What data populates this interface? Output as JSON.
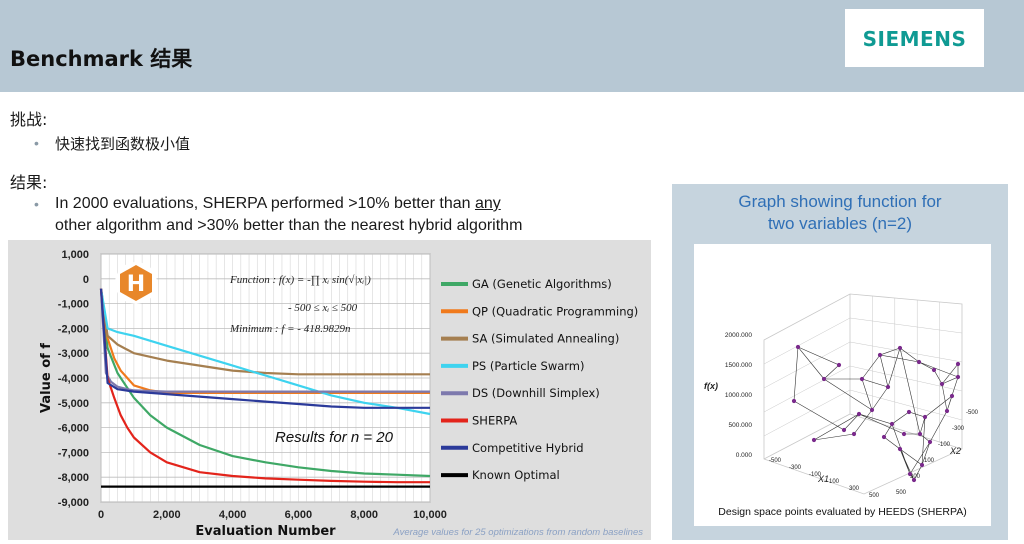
{
  "header": {
    "title": "Benchmark  结果",
    "logo": "SIEMENS"
  },
  "challenge": {
    "heading": "挑战:",
    "bullet": "快速找到函数极小值"
  },
  "result": {
    "heading": "结果:",
    "bullet_a": "In 2000 evaluations, SHERPA performed >10% better than ",
    "bullet_any": "any",
    "bullet_b": "other algorithm and >30% better than the nearest hybrid algorithm"
  },
  "chart_data": {
    "type": "line",
    "xlabel": "Evaluation Number",
    "ylabel": "Value of f",
    "xlim": [
      0,
      10000
    ],
    "ylim": [
      -9000,
      1000
    ],
    "xticks": [
      0,
      2000,
      4000,
      6000,
      8000,
      10000
    ],
    "xtick_labels": [
      "0",
      "2,000",
      "4,000",
      "6,000",
      "8,000",
      "10,000"
    ],
    "yticks": [
      1000,
      0,
      -1000,
      -2000,
      -3000,
      -4000,
      -5000,
      -6000,
      -7000,
      -8000,
      -9000
    ],
    "ytick_labels": [
      "1,000",
      "0",
      "-1,000",
      "-2,000",
      "-3,000",
      "-4,000",
      "-5,000",
      "-6,000",
      "-7,000",
      "-8,000",
      "-9,000"
    ],
    "grid": true,
    "legend_position": "right",
    "annotation_results": "Results for n = 20",
    "annotation_function": "Function : f(x) = -∏ xᵢ sin(√|xᵢ|)",
    "annotation_bounds": "- 500 ≤ xᵢ ≤ 500",
    "annotation_minimum": "Minimum : f = - 418.9829n",
    "footnote": "Average values for 25 optimizations from random baselines",
    "series": [
      {
        "name": "GA (Genetic Algorithms)",
        "color": "#3fa866",
        "x": [
          0,
          200,
          500,
          800,
          1000,
          1500,
          2000,
          3000,
          4000,
          5000,
          6000,
          7000,
          8000,
          9000,
          10000
        ],
        "y": [
          -400,
          -2800,
          -3800,
          -4400,
          -4800,
          -5500,
          -6000,
          -6700,
          -7150,
          -7400,
          -7600,
          -7750,
          -7850,
          -7900,
          -7950
        ]
      },
      {
        "name": "QP (Quadratic Programming)",
        "color": "#f07a1c",
        "x": [
          0,
          200,
          400,
          600,
          800,
          1000,
          1500,
          2000,
          10000
        ],
        "y": [
          -400,
          -2400,
          -3200,
          -3700,
          -4000,
          -4300,
          -4500,
          -4600,
          -4600
        ]
      },
      {
        "name": "SA (Simulated Annealing)",
        "color": "#a57f50",
        "x": [
          0,
          200,
          500,
          1000,
          2000,
          3000,
          4000,
          5000,
          6000,
          10000
        ],
        "y": [
          -400,
          -2300,
          -2650,
          -3000,
          -3300,
          -3500,
          -3700,
          -3800,
          -3850,
          -3850
        ]
      },
      {
        "name": "PS (Particle Swarm)",
        "color": "#3ed3ef",
        "x": [
          0,
          200,
          500,
          1000,
          2000,
          3000,
          4000,
          5000,
          6000,
          7000,
          8000,
          9000,
          10000
        ],
        "y": [
          -400,
          -2000,
          -2150,
          -2300,
          -2700,
          -3100,
          -3500,
          -3900,
          -4300,
          -4700,
          -5000,
          -5200,
          -5450
        ]
      },
      {
        "name": "DS (Downhill Simplex)",
        "color": "#7d79ad",
        "x": [
          0,
          150,
          300,
          500,
          800,
          1000,
          2000,
          10000
        ],
        "y": [
          -400,
          -3800,
          -4150,
          -4350,
          -4450,
          -4500,
          -4550,
          -4550
        ]
      },
      {
        "name": "SHERPA",
        "color": "#e3241b",
        "x": [
          0,
          200,
          400,
          600,
          800,
          1000,
          1500,
          2000,
          3000,
          4000,
          5000,
          6000,
          7000,
          8000,
          9000,
          10000
        ],
        "y": [
          -400,
          -4000,
          -4800,
          -5500,
          -6000,
          -6400,
          -7000,
          -7400,
          -7800,
          -7950,
          -8050,
          -8100,
          -8150,
          -8180,
          -8200,
          -8200
        ]
      },
      {
        "name": "Competitive Hybrid",
        "color": "#2b3a9a",
        "x": [
          0,
          200,
          500,
          1000,
          2000,
          3000,
          4000,
          5000,
          6000,
          7000,
          8000,
          9000,
          10000
        ],
        "y": [
          -400,
          -4200,
          -4450,
          -4550,
          -4650,
          -4750,
          -4850,
          -4950,
          -5050,
          -5150,
          -5200,
          -5200,
          -5200
        ]
      },
      {
        "name": "Known Optimal",
        "color": "#000000",
        "x": [
          0,
          10000
        ],
        "y": [
          -8380,
          -8380
        ]
      }
    ]
  },
  "right_panel": {
    "title": "Graph showing function for\ntwo variables (n=2)",
    "caption": "Design space points evaluated by HEEDS (SHERPA)",
    "z_label": "f(x)",
    "x1_label": "X1",
    "x2_label": "X2",
    "z_ticks": [
      "2000.000",
      "1500.000",
      "1000.000",
      "500.000",
      "0.000"
    ],
    "x1_ticks": [
      "-500",
      "-300",
      "-100",
      "100",
      "300",
      "500"
    ],
    "x2_ticks": [
      "-500",
      "-300",
      "-100",
      "100",
      "300",
      "500"
    ]
  }
}
